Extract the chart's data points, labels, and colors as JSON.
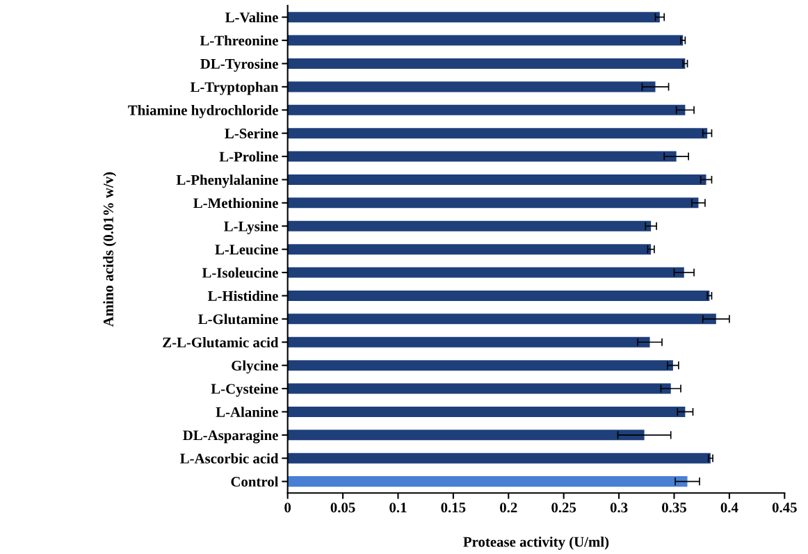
{
  "chart_data": {
    "type": "bar",
    "orientation": "horizontal",
    "xlabel": "Protease activity (U/ml)",
    "ylabel": "Amino acids (0.01% w/v)",
    "categories": [
      "L-Valine",
      "L-Threonine",
      "DL-Tyrosine",
      "L-Tryptophan",
      "Thiamine hydrochloride",
      "L-Serine",
      "L-Proline",
      "L-Phenylalanine",
      "L-Methionine",
      "L-Lysine",
      "L-Leucine",
      "L-Isoleucine",
      "L-Histidine",
      "L-Glutamine",
      "Z-L-Glutamic acid",
      "Glycine",
      "L-Cysteine",
      "L-Alanine",
      "DL-Asparagine",
      "L-Ascorbic acid",
      "Control"
    ],
    "values": [
      0.337,
      0.358,
      0.36,
      0.333,
      0.36,
      0.38,
      0.352,
      0.379,
      0.372,
      0.329,
      0.329,
      0.359,
      0.382,
      0.388,
      0.328,
      0.349,
      0.347,
      0.36,
      0.323,
      0.383,
      0.362
    ],
    "errors": [
      0.004,
      0.002,
      0.002,
      0.012,
      0.008,
      0.004,
      0.011,
      0.005,
      0.006,
      0.005,
      0.003,
      0.009,
      0.002,
      0.012,
      0.011,
      0.005,
      0.009,
      0.007,
      0.024,
      0.002,
      0.011
    ],
    "colors": [
      "#1f3f7a",
      "#1f3f7a",
      "#1f3f7a",
      "#1f3f7a",
      "#1f3f7a",
      "#1f3f7a",
      "#1f3f7a",
      "#1f3f7a",
      "#1f3f7a",
      "#1f3f7a",
      "#1f3f7a",
      "#1f3f7a",
      "#1f3f7a",
      "#1f3f7a",
      "#1f3f7a",
      "#1f3f7a",
      "#1f3f7a",
      "#1f3f7a",
      "#1f3f7a",
      "#1f3f7a",
      "#4a80d4"
    ],
    "xlim": [
      0,
      0.45
    ],
    "xticks": [
      0,
      0.05,
      0.1,
      0.15,
      0.2,
      0.25,
      0.3,
      0.35,
      0.4,
      0.45
    ]
  }
}
